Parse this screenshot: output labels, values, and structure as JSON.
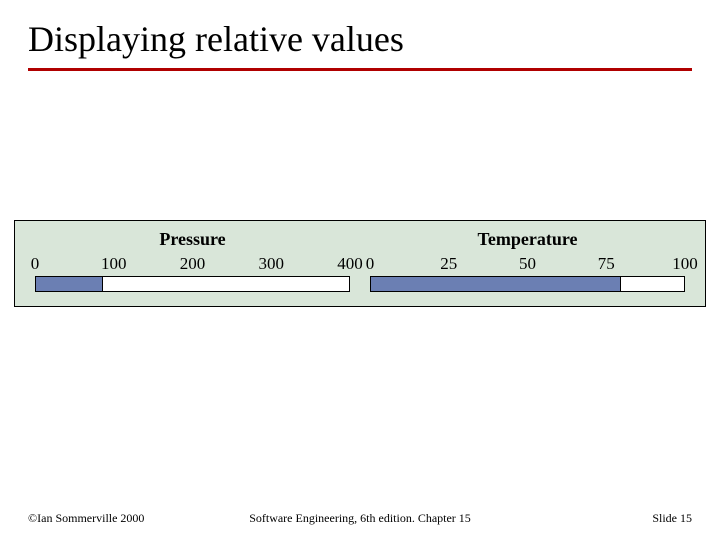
{
  "title": "Displaying relative values",
  "figure": {
    "panel_bg": "#d9e6d9",
    "bar_fill": "#6b7fb3",
    "bar_bg": "#ffffff",
    "border": "#000000",
    "gauges": [
      {
        "label": "Pressure",
        "min": 0,
        "max": 400,
        "ticks": [
          0,
          100,
          200,
          300,
          400
        ],
        "value": 85
      },
      {
        "label": "Temperature",
        "min": 0,
        "max": 100,
        "ticks": [
          0,
          25,
          50,
          75,
          100
        ],
        "value": 80
      }
    ]
  },
  "footer": {
    "left": "©Ian Sommerville 2000",
    "center": "Software Engineering, 6th edition. Chapter 15",
    "right": "Slide 15"
  },
  "style": {
    "rule_color": "#b00000",
    "title_fontsize": 36,
    "tick_fontsize": 17,
    "gauge_title_fontsize": 18,
    "footer_fontsize": 12
  }
}
